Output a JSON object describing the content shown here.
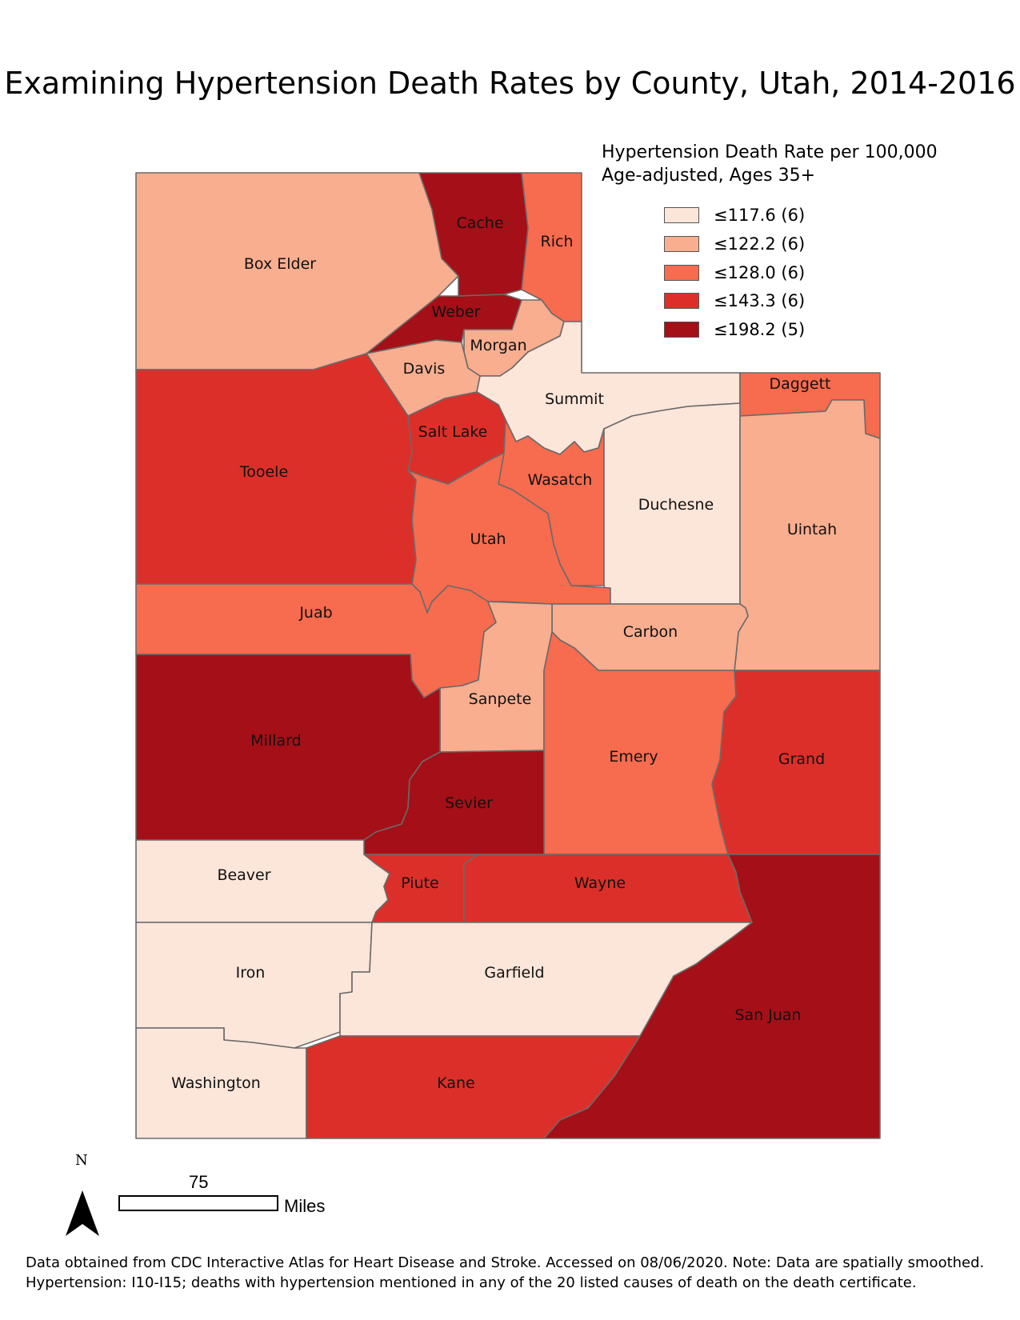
{
  "title": "Examining Hypertension Death Rates by County, Utah, 2014-2016",
  "legend": {
    "title_line1": "Hypertension Death Rate per 100,000",
    "title_line2": "Age-adjusted, Ages 35+",
    "classes": [
      {
        "label": "≤117.6 (6)",
        "color": "#fce5d9"
      },
      {
        "label": "≤122.2 (6)",
        "color": "#f8ae8f"
      },
      {
        "label": "≤128.0 (6)",
        "color": "#f76b4e"
      },
      {
        "label": "≤143.3 (6)",
        "color": "#dd2f29"
      },
      {
        "label": "≤198.2 (5)",
        "color": "#a50f17"
      }
    ]
  },
  "counties": [
    {
      "name": "Box Elder",
      "class": 1
    },
    {
      "name": "Cache",
      "class": 4
    },
    {
      "name": "Rich",
      "class": 2
    },
    {
      "name": "Weber",
      "class": 4
    },
    {
      "name": "Morgan",
      "class": 1
    },
    {
      "name": "Davis",
      "class": 1
    },
    {
      "name": "Summit",
      "class": 0
    },
    {
      "name": "Daggett",
      "class": 2
    },
    {
      "name": "Salt Lake",
      "class": 3
    },
    {
      "name": "Tooele",
      "class": 3
    },
    {
      "name": "Wasatch",
      "class": 2
    },
    {
      "name": "Duchesne",
      "class": 0
    },
    {
      "name": "Uintah",
      "class": 1
    },
    {
      "name": "Utah",
      "class": 2
    },
    {
      "name": "Juab",
      "class": 2
    },
    {
      "name": "Carbon",
      "class": 1
    },
    {
      "name": "Sanpete",
      "class": 1
    },
    {
      "name": "Emery",
      "class": 2
    },
    {
      "name": "Grand",
      "class": 3
    },
    {
      "name": "Millard",
      "class": 4
    },
    {
      "name": "Sevier",
      "class": 4
    },
    {
      "name": "Beaver",
      "class": 0
    },
    {
      "name": "Piute",
      "class": 3
    },
    {
      "name": "Wayne",
      "class": 3
    },
    {
      "name": "San Juan",
      "class": 4
    },
    {
      "name": "Iron",
      "class": 0
    },
    {
      "name": "Garfield",
      "class": 0
    },
    {
      "name": "Washington",
      "class": 0
    },
    {
      "name": "Kane",
      "class": 3
    }
  ],
  "north_label": "N",
  "scale": {
    "value": "75",
    "unit": "Miles"
  },
  "footnote": {
    "line1": "Data obtained from CDC Interactive Atlas for Heart Disease and Stroke. Accessed on 08/06/2020. Note: Data are spatially smoothed.",
    "line2": "Hypertension: I10-I15; deaths with hypertension mentioned in any of the 20 listed causes of death on the death certificate."
  }
}
